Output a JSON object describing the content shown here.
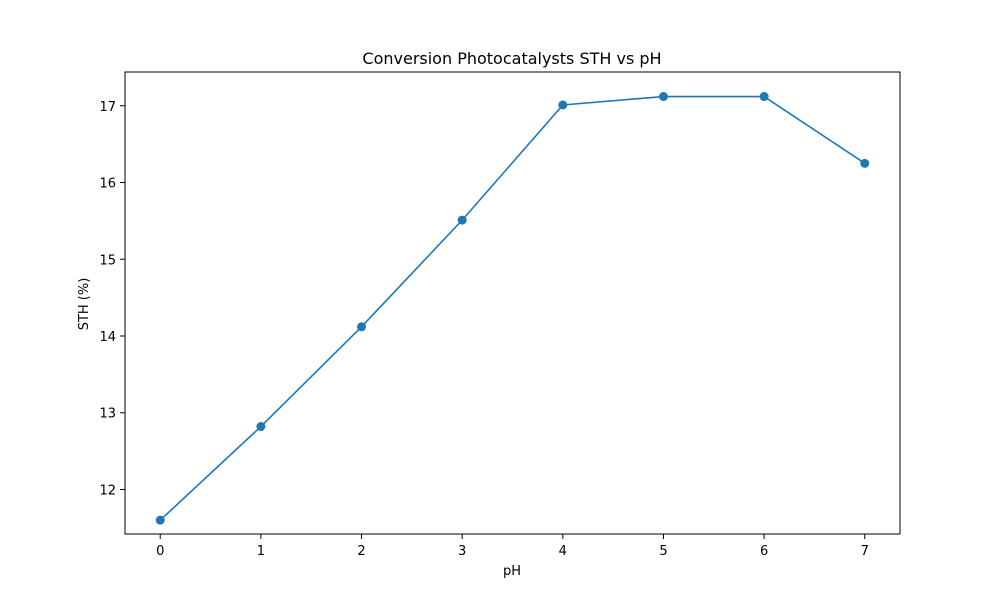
{
  "chart_data": {
    "type": "line",
    "title": "Conversion Photocatalysts STH vs pH",
    "xlabel": "pH",
    "ylabel": "STH (%)",
    "x": [
      0,
      1,
      2,
      3,
      4,
      5,
      6,
      7
    ],
    "series": [
      {
        "values": [
          11.6,
          12.82,
          14.12,
          15.51,
          17.01,
          17.12,
          17.12,
          16.25
        ],
        "color": "#1f77b4",
        "marker": "circle"
      }
    ],
    "xlim": [
      -0.35,
      7.35
    ],
    "ylim": [
      11.42,
      17.44
    ],
    "xticks": [
      0,
      1,
      2,
      3,
      4,
      5,
      6,
      7
    ],
    "yticks": [
      12,
      13,
      14,
      15,
      16,
      17
    ],
    "grid": false,
    "legend": "none"
  }
}
